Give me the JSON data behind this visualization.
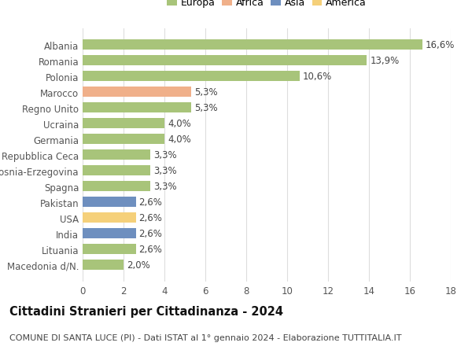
{
  "categories": [
    "Macedonia d/N.",
    "Lituania",
    "India",
    "USA",
    "Pakistan",
    "Spagna",
    "Bosnia-Erzegovina",
    "Repubblica Ceca",
    "Germania",
    "Ucraina",
    "Regno Unito",
    "Marocco",
    "Polonia",
    "Romania",
    "Albania"
  ],
  "values": [
    2.0,
    2.6,
    2.6,
    2.6,
    2.6,
    3.3,
    3.3,
    3.3,
    4.0,
    4.0,
    5.3,
    5.3,
    10.6,
    13.9,
    16.6
  ],
  "labels": [
    "2,0%",
    "2,6%",
    "2,6%",
    "2,6%",
    "2,6%",
    "3,3%",
    "3,3%",
    "3,3%",
    "4,0%",
    "4,0%",
    "5,3%",
    "5,3%",
    "10,6%",
    "13,9%",
    "16,6%"
  ],
  "continent": [
    "Europa",
    "Europa",
    "Asia",
    "America",
    "Asia",
    "Europa",
    "Europa",
    "Europa",
    "Europa",
    "Europa",
    "Europa",
    "Africa",
    "Europa",
    "Europa",
    "Europa"
  ],
  "colors": {
    "Europa": "#a8c47a",
    "Africa": "#f0b08a",
    "Asia": "#6e8fbf",
    "America": "#f5d07a"
  },
  "legend_order": [
    "Europa",
    "Africa",
    "Asia",
    "America"
  ],
  "legend_colors": [
    "#a8c47a",
    "#f0b08a",
    "#6e8fbf",
    "#f5d07a"
  ],
  "title": "Cittadini Stranieri per Cittadinanza - 2024",
  "subtitle": "COMUNE DI SANTA LUCE (PI) - Dati ISTAT al 1° gennaio 2024 - Elaborazione TUTTITALIA.IT",
  "xlim": [
    0,
    18
  ],
  "xticks": [
    0,
    2,
    4,
    6,
    8,
    10,
    12,
    14,
    16,
    18
  ],
  "background_color": "#ffffff",
  "grid_color": "#dddddd",
  "bar_height": 0.65,
  "label_fontsize": 8.5,
  "tick_fontsize": 8.5,
  "title_fontsize": 10.5,
  "subtitle_fontsize": 8.0,
  "legend_fontsize": 9.0
}
